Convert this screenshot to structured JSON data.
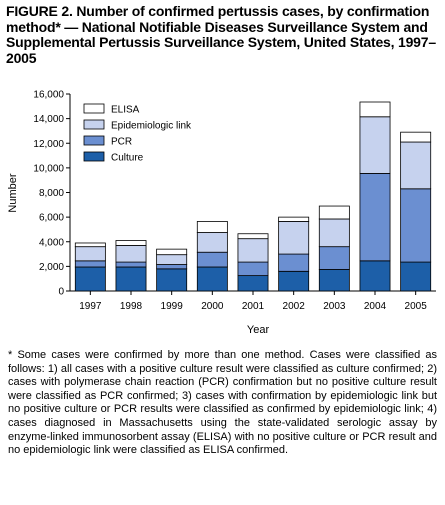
{
  "figure": {
    "title": "FIGURE 2. Number of confirmed pertussis cases, by confirmation method* — National Notifiable Diseases Surveillance System and Supplemental Pertussis Surveillance System, United States, 1997–2005",
    "footnote_marker": "*",
    "footnote": "Some cases were confirmed by more than one method. Cases were classified as follows: 1) all cases with a positive culture result were classified as culture confirmed; 2) cases with polymerase chain reaction (PCR) confirmation but no positive culture result were classified as PCR confirmed; 3) cases with confirmation by epidemiologic link but no positive culture or PCR results were classified as confirmed by epidemiologic link; 4) cases diagnosed in Massachusetts using the state-validated serologic assay by enzyme-linked immunosorbent assay (ELISA) with no positive culture or PCR result and no epidemiologic link were classified as ELISA confirmed."
  },
  "chart_data": {
    "type": "bar",
    "stacked": true,
    "categories": [
      "1997",
      "1998",
      "1999",
      "2000",
      "2001",
      "2002",
      "2003",
      "2004",
      "2005"
    ],
    "series": [
      {
        "name": "Culture",
        "color": "#1d5fa8",
        "values": [
          1950,
          1950,
          1800,
          1950,
          1250,
          1600,
          1750,
          2450,
          2350
        ]
      },
      {
        "name": "PCR",
        "color": "#6b8fd1",
        "values": [
          500,
          400,
          350,
          1200,
          1100,
          1400,
          1850,
          7100,
          5950
        ]
      },
      {
        "name": "Epidemiologic link",
        "color": "#c6d2ee",
        "values": [
          1150,
          1350,
          800,
          1600,
          1900,
          2650,
          2250,
          4600,
          3800
        ]
      },
      {
        "name": "ELISA",
        "color": "#ffffff",
        "values": [
          300,
          400,
          450,
          900,
          400,
          350,
          1050,
          1200,
          800
        ]
      }
    ],
    "legend_order": [
      "ELISA",
      "Epidemiologic link",
      "PCR",
      "Culture"
    ],
    "legend_position": "top-left",
    "xlabel": "Year",
    "ylabel": "Number",
    "ylim": [
      0,
      16000
    ],
    "yticks": [
      "0",
      "2,000",
      "4,000",
      "6,000",
      "8,000",
      "10,000",
      "12,000",
      "14,000",
      "16,000"
    ],
    "grid": false
  }
}
